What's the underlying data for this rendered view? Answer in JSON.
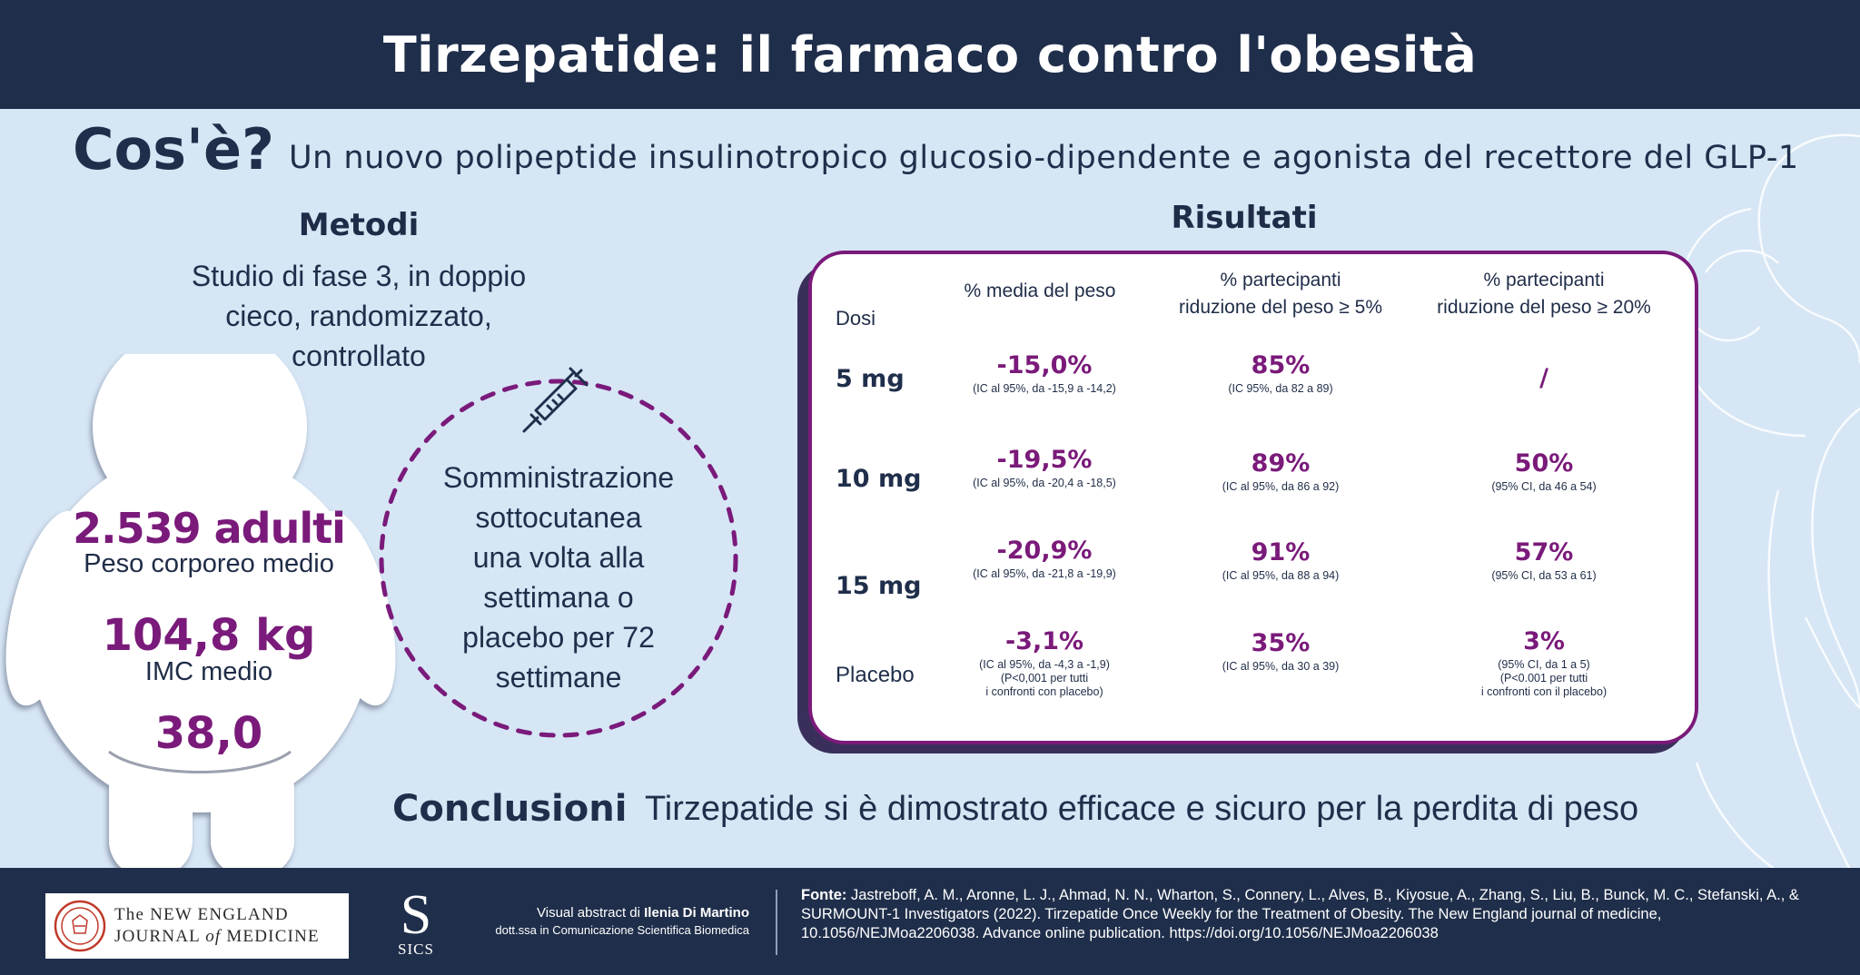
{
  "header": {
    "title": "Tirzepatide: il farmaco contro l'obesità"
  },
  "whatis": {
    "label": "Cos'è?",
    "text": "Un nuovo polipeptide insulinotropico glucosio-dipendente e agonista del recettore del GLP-1"
  },
  "methods": {
    "title": "Metodi",
    "lines": [
      "Studio di fase 3, in doppio",
      "cieco, randomizzato,",
      "controllato"
    ],
    "participants": "2.539 adulti",
    "weight_label": "Peso corporeo medio",
    "weight_value": "104,8 kg",
    "bmi_label": "IMC medio",
    "bmi_value": "38,0",
    "administration": [
      "Somministrazione",
      "sottocutanea",
      "una volta alla",
      "settimana o",
      "placebo per 72",
      "settimane"
    ]
  },
  "results": {
    "title": "Risultati",
    "headers": {
      "dose": "Dosi",
      "mean": "% media del peso",
      "p5_l1": "% partecipanti",
      "p5_l2": "riduzione del peso ≥ 5%",
      "p20_l1": "% partecipanti",
      "p20_l2": "riduzione del peso ≥ 20%"
    },
    "rows": [
      {
        "dose": "5 mg",
        "mean": "-15,0%",
        "mean_ci": "(IC al 95%, da -15,9 a -14,2)",
        "p5": "85%",
        "p5_ci": "(IC 95%, da 82 a 89)",
        "p20": "/",
        "p20_ci": ""
      },
      {
        "dose": "10 mg",
        "mean": "-19,5%",
        "mean_ci": "(IC al 95%, da -20,4 a -18,5)",
        "p5": "89%",
        "p5_ci": "(IC al 95%, da 86 a 92)",
        "p20": "50%",
        "p20_ci": "(95% CI, da 46 a 54)"
      },
      {
        "dose": "15 mg",
        "mean": "-20,9%",
        "mean_ci": "(IC al 95%, da -21,8 a -19,9)",
        "p5": "91%",
        "p5_ci": "(IC al 95%, da 88 a 94)",
        "p20": "57%",
        "p20_ci": "(95% CI, da 53 a 61)"
      },
      {
        "dose": "Placebo",
        "mean": "-3,1%",
        "mean_ci": "(IC al 95%, da -4,3 a -1,9)",
        "mean_note_l1": "(P<0,001 per tutti",
        "mean_note_l2": "i confronti con placebo)",
        "p5": "35%",
        "p5_ci": "(IC al 95%, da 30 a 39)",
        "p20": "3%",
        "p20_ci": "(95% CI, da 1 a 5)",
        "p20_note_l1": "(P<0.001 per tutti",
        "p20_note_l2": "i confronti con il placebo)"
      }
    ]
  },
  "conclusions": {
    "label": "Conclusioni",
    "text": "Tirzepatide si è dimostrato efficace e sicuro per la perdita di peso"
  },
  "footer": {
    "nejm_l1": "The NEW ENGLAND",
    "nejm_l2_a": "JOURNAL ",
    "nejm_l2_of": "of",
    "nejm_l2_b": " MEDICINE",
    "sics_letter": "S",
    "sics_text": "SICS",
    "credit_prefix": "Visual abstract di ",
    "credit_name": "Ilenia Di Martino",
    "credit_role": "dott.ssa in Comunicazione Scientifica Biomedica",
    "source_label": "Fonte:",
    "source_text": " Jastreboff, A. M., Aronne, L. J., Ahmad, N. N., Wharton, S., Connery, L., Alves, B., Kiyosue, A., Zhang, S., Liu, B., Bunck, M. C., Stefanski, A., & SURMOUNT-1 Investigators (2022). Tirzepatide Once Weekly for the Treatment of Obesity. The New England journal of medicine, 10.1056/NEJMoa2206038. Advance online publication. https://doi.org/10.1056/NEJMoa2206038"
  },
  "colors": {
    "navy": "#1f2e4a",
    "purple": "#7a1a7a",
    "background": "#d6e6f5",
    "card_shadow": "#3a2f5a"
  },
  "icons": [
    "syringe-icon",
    "body-silhouette",
    "nejm-seal-icon",
    "sics-logo"
  ]
}
